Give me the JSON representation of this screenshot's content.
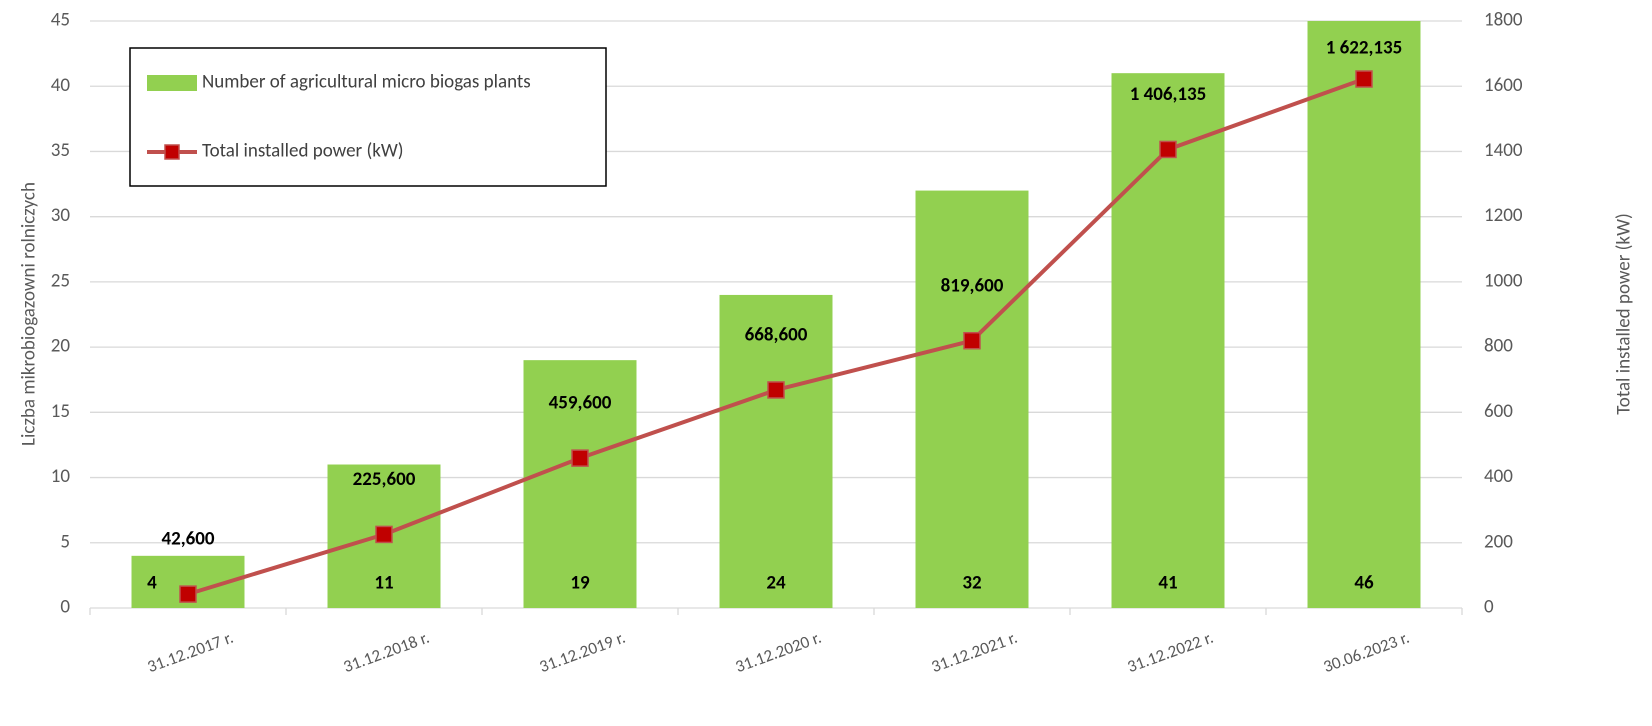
{
  "chart_data": {
    "type": "bar",
    "categories": [
      "31.12.2017 r.",
      "31.12.2018 r.",
      "31.12.2019 r.",
      "31.12.2020 r.",
      "31.12.2021 r.",
      "31.12.2022 r.",
      "30.06.2023 r."
    ],
    "series": [
      {
        "name": "Number of agricultural micro biogas plants",
        "type": "bar",
        "color": "#92d050",
        "values": [
          4,
          11,
          19,
          24,
          32,
          41,
          46
        ]
      },
      {
        "name": "Total installed power (kW)",
        "type": "line",
        "axis": "y2",
        "color": "#c0504d",
        "marker_color": "#c00000",
        "values": [
          42.6,
          225.6,
          459.6,
          668.6,
          819.6,
          1406.135,
          1622.135
        ],
        "value_labels": [
          "42,600",
          "225,600",
          "459,600",
          "668,600",
          "819,600",
          "1 406,135",
          "1 622,135"
        ]
      }
    ],
    "ylabel": "Liczba mikrobiogazowni rolniczych",
    "y2label": "Total installed power  (kW)",
    "ylim": [
      0,
      45
    ],
    "yticks": [
      0,
      5,
      10,
      15,
      20,
      25,
      30,
      35,
      40,
      45
    ],
    "y2lim": [
      0,
      1800
    ],
    "y2ticks": [
      0,
      200,
      400,
      600,
      800,
      1000,
      1200,
      1400,
      1600,
      1800
    ],
    "grid": true,
    "legend": "upper left"
  }
}
